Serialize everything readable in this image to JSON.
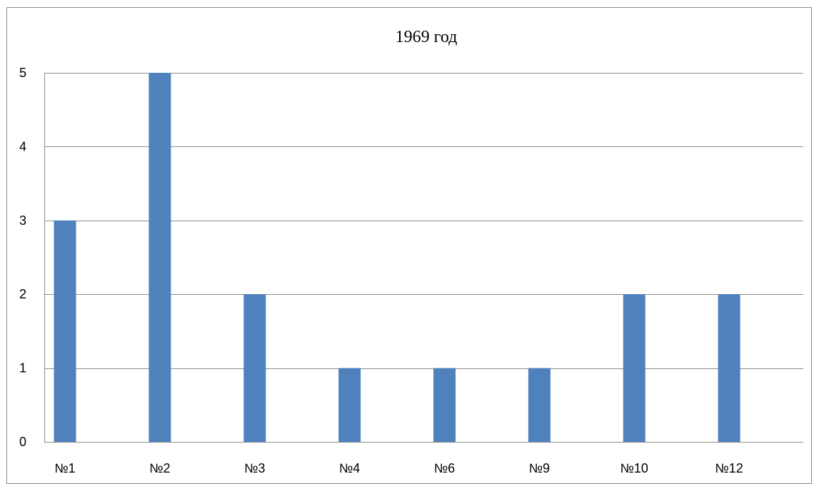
{
  "chart_data": {
    "type": "bar",
    "title": "1969 год",
    "categories": [
      "№1",
      "№2",
      "№3",
      "№4",
      "№6",
      "№9",
      "№10",
      "№12"
    ],
    "values": [
      3,
      5,
      2,
      1,
      1,
      1,
      2,
      2
    ],
    "ylim": [
      0,
      5
    ],
    "yticks": [
      "0",
      "1",
      "2",
      "3",
      "4",
      "5"
    ],
    "grid": true,
    "legend": "none",
    "colors": {
      "bar": "#4F81BD",
      "grid": "#8C8C8C",
      "frame": "#8C8C8C"
    }
  }
}
